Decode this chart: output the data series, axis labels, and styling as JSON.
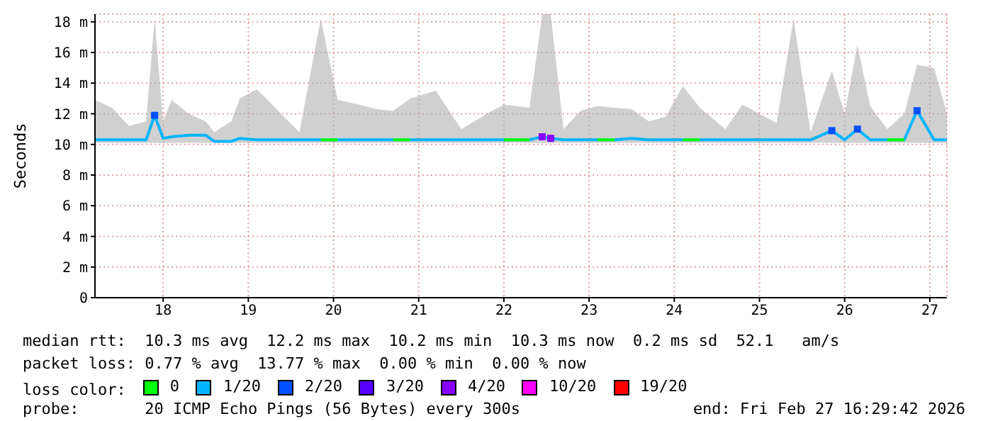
{
  "chart_data": {
    "type": "line",
    "ylabel": "Seconds",
    "legend_title": "loss color:",
    "legend": "bottom",
    "grid": true,
    "marker": "none",
    "line_style": "solid",
    "xlim": [
      17.2,
      27.2
    ],
    "xticks": [
      18,
      19,
      20,
      21,
      22,
      23,
      24,
      25,
      26,
      27
    ],
    "ylim": [
      0,
      18.5
    ],
    "yticks": [
      0,
      {
        "value": 2,
        "label": "2 m"
      },
      {
        "value": 4,
        "label": "4 m"
      },
      {
        "value": 6,
        "label": "6 m"
      },
      {
        "value": 8,
        "label": "8 m"
      },
      {
        "value": 10,
        "label": "10 m"
      },
      {
        "value": 12,
        "label": "12 m"
      },
      {
        "value": 14,
        "label": "14 m"
      },
      {
        "value": 16,
        "label": "16 m"
      },
      {
        "value": 18,
        "label": "18 m"
      }
    ],
    "x": [
      17.2,
      17.4,
      17.6,
      17.8,
      17.9,
      18.0,
      18.1,
      18.3,
      18.5,
      18.6,
      18.8,
      18.9,
      19.1,
      19.3,
      19.4,
      19.6,
      19.85,
      20.05,
      20.3,
      20.5,
      20.7,
      20.9,
      21.2,
      21.5,
      21.8,
      22.0,
      22.3,
      22.45,
      22.55,
      22.7,
      22.9,
      23.1,
      23.3,
      23.5,
      23.7,
      23.9,
      24.1,
      24.3,
      24.6,
      24.8,
      25.0,
      25.2,
      25.4,
      25.6,
      25.85,
      26.0,
      26.15,
      26.3,
      26.5,
      26.7,
      26.85,
      27.05,
      27.2
    ],
    "series": [
      {
        "name": "0",
        "color": "#00ff00",
        "values": [
          null,
          null,
          null,
          null,
          null,
          null,
          null,
          null,
          null,
          null,
          null,
          null,
          null,
          null,
          null,
          null,
          10.3,
          10.3,
          null,
          null,
          10.3,
          10.3,
          null,
          null,
          null,
          10.3,
          10.3,
          null,
          null,
          null,
          null,
          10.3,
          10.3,
          null,
          null,
          null,
          10.3,
          10.3,
          null,
          null,
          null,
          null,
          null,
          null,
          null,
          null,
          null,
          null,
          10.3,
          10.3,
          null,
          null,
          null
        ]
      },
      {
        "name": "1/20",
        "color": "#00b4ff",
        "values": [
          10.3,
          10.3,
          10.3,
          10.3,
          11.9,
          10.4,
          10.5,
          10.6,
          10.6,
          10.2,
          10.2,
          10.4,
          10.3,
          10.3,
          10.3,
          10.3,
          10.3,
          10.3,
          10.3,
          10.3,
          10.3,
          10.3,
          10.3,
          10.3,
          10.3,
          10.3,
          10.3,
          10.5,
          10.4,
          10.3,
          10.3,
          10.3,
          10.3,
          10.4,
          10.3,
          10.3,
          10.3,
          10.3,
          10.3,
          10.3,
          10.3,
          10.3,
          10.3,
          10.3,
          10.9,
          10.3,
          11.0,
          10.3,
          10.3,
          10.3,
          12.2,
          10.3,
          10.3
        ],
        "lower": [
          10.1,
          10.1,
          10.1,
          10.1,
          10.1,
          10.1,
          10.1,
          10.1,
          10.1,
          10.1,
          10.1,
          10.1,
          10.1,
          10.1,
          10.1,
          10.1,
          10.1,
          10.1,
          10.1,
          10.1,
          10.1,
          10.1,
          10.1,
          10.1,
          10.1,
          10.1,
          10.1,
          10.1,
          10.1,
          10.1,
          10.1,
          10.1,
          10.1,
          10.1,
          10.1,
          10.1,
          10.1,
          10.1,
          10.1,
          10.1,
          10.1,
          10.1,
          10.1,
          10.1,
          10.1,
          10.1,
          10.1,
          10.1,
          10.1,
          10.1,
          10.1,
          10.1,
          10.1
        ],
        "upper": [
          12.9,
          12.4,
          11.2,
          11.5,
          18.2,
          11.5,
          12.9,
          12.0,
          11.5,
          10.8,
          11.5,
          13.0,
          13.6,
          12.5,
          11.9,
          10.8,
          18.2,
          12.9,
          12.6,
          12.3,
          12.2,
          13.0,
          13.5,
          11.0,
          12.0,
          12.6,
          12.4,
          18.5,
          18.5,
          11.0,
          12.2,
          12.5,
          12.4,
          12.3,
          11.5,
          11.8,
          13.8,
          12.4,
          11.0,
          12.6,
          12.0,
          11.4,
          18.2,
          10.8,
          14.8,
          12.0,
          16.5,
          12.5,
          11.0,
          12.0,
          15.2,
          15.0,
          12.0
        ]
      },
      {
        "name": "2/20",
        "type": "scatter",
        "marker": "square",
        "color": "#0050ff",
        "values": [
          null,
          null,
          null,
          null,
          11.9,
          null,
          null,
          null,
          null,
          null,
          null,
          null,
          null,
          null,
          null,
          null,
          null,
          null,
          null,
          null,
          null,
          null,
          null,
          null,
          null,
          null,
          null,
          null,
          null,
          null,
          null,
          null,
          null,
          null,
          null,
          null,
          null,
          null,
          null,
          null,
          null,
          null,
          null,
          null,
          10.9,
          null,
          11.0,
          null,
          null,
          null,
          12.2,
          null,
          null
        ]
      },
      {
        "name": "3/20",
        "color": "#5500ff",
        "values": [
          null,
          null,
          null,
          null,
          null,
          null,
          null,
          null,
          null,
          null,
          null,
          null,
          null,
          null,
          null,
          null,
          null,
          null,
          null,
          null,
          null,
          null,
          null,
          null,
          null,
          null,
          null,
          null,
          null,
          null,
          null,
          null,
          null,
          null,
          null,
          null,
          null,
          null,
          null,
          null,
          null,
          null,
          null,
          null,
          null,
          null,
          null,
          null,
          null,
          null,
          null,
          null,
          null
        ]
      },
      {
        "name": "4/20",
        "type": "scatter",
        "marker": "square",
        "color": "#8800ff",
        "values": [
          null,
          null,
          null,
          null,
          null,
          null,
          null,
          null,
          null,
          null,
          null,
          null,
          null,
          null,
          null,
          null,
          null,
          null,
          null,
          null,
          null,
          null,
          null,
          null,
          null,
          null,
          null,
          10.5,
          10.4,
          null,
          null,
          null,
          null,
          null,
          null,
          null,
          null,
          null,
          null,
          null,
          null,
          null,
          null,
          null,
          null,
          null,
          null,
          null,
          null,
          null,
          null,
          null,
          null
        ]
      },
      {
        "name": "10/20",
        "color": "#ff00ff",
        "values": [
          null,
          null,
          null,
          null,
          null,
          null,
          null,
          null,
          null,
          null,
          null,
          null,
          null,
          null,
          null,
          null,
          null,
          null,
          null,
          null,
          null,
          null,
          null,
          null,
          null,
          null,
          null,
          null,
          null,
          null,
          null,
          null,
          null,
          null,
          null,
          null,
          null,
          null,
          null,
          null,
          null,
          null,
          null,
          null,
          null,
          null,
          null,
          null,
          null,
          null,
          null,
          null,
          null
        ]
      },
      {
        "name": "19/20",
        "color": "#ff0000",
        "values": [
          null,
          null,
          null,
          null,
          null,
          null,
          null,
          null,
          null,
          null,
          null,
          null,
          null,
          null,
          null,
          null,
          null,
          null,
          null,
          null,
          null,
          null,
          null,
          null,
          null,
          null,
          null,
          null,
          null,
          null,
          null,
          null,
          null,
          null,
          null,
          null,
          null,
          null,
          null,
          null,
          null,
          null,
          null,
          null,
          null,
          null,
          null,
          null,
          null,
          null,
          null,
          null,
          null
        ]
      }
    ],
    "annotations": [
      "median rtt:  10.3 ms avg  12.2 ms max  10.2 ms min  10.3 ms now  0.2 ms sd  52.1   am/s",
      "packet loss: 0.77 % avg  13.77 % max  0.00 % min  0.00 % now",
      "probe:       20 ICMP Echo Pings (56 Bytes) every 300s",
      "end: Fri Feb 27 16:29:42 2026"
    ]
  }
}
